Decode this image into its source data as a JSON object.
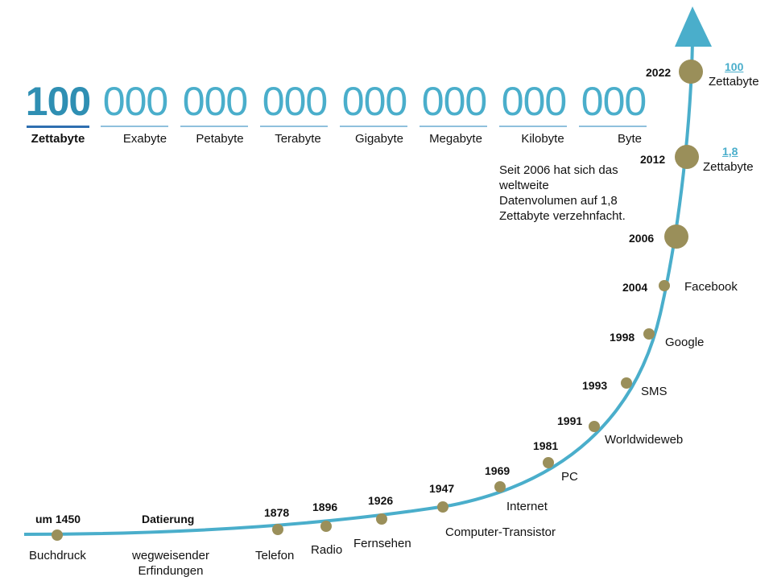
{
  "scale": {
    "digit_groups": [
      "100",
      "000",
      "000",
      "000",
      "000",
      "000",
      "000",
      "000"
    ],
    "units": [
      "Zettabyte",
      "Exabyte",
      "Petabyte",
      "Terabyte",
      "Gigabyte",
      "Megabyte",
      "Kilobyte",
      "Byte"
    ]
  },
  "note": "Seit 2006 hat sich das weltweite Datenvolumen auf 1,8 Zettabyte verzehnfacht.",
  "header_left": {
    "year": "um 1450",
    "col": "Datierung"
  },
  "milestones": [
    {
      "year": "um 1450",
      "label": "Buchdruck"
    },
    {
      "year": "Datierung",
      "label": "wegweisender Erfindungen"
    },
    {
      "year": "1878",
      "label": "Telefon"
    },
    {
      "year": "1896",
      "label": "Radio"
    },
    {
      "year": "1926",
      "label": "Fernsehen"
    },
    {
      "year": "1947",
      "label": "Computer-Transistor"
    },
    {
      "year": "1969",
      "label": "Internet"
    },
    {
      "year": "1981",
      "label": "PC"
    },
    {
      "year": "1991",
      "label": "Worldwideweb"
    },
    {
      "year": "1993",
      "label": "SMS"
    },
    {
      "year": "1998",
      "label": "Google"
    },
    {
      "year": "2004",
      "label": "Facebook"
    },
    {
      "year": "2006",
      "label": ""
    },
    {
      "year": "2012",
      "label": ""
    },
    {
      "year": "2022",
      "label": ""
    }
  ],
  "volumes": {
    "v2012": {
      "value": "1,8",
      "unit": "Zettabyte"
    },
    "v2022": {
      "value": "100",
      "unit": "Zettabyte"
    }
  },
  "colors": {
    "curve": "#4aaecb",
    "dot": "#9a8f5a",
    "digits": "#4aaecb"
  }
}
